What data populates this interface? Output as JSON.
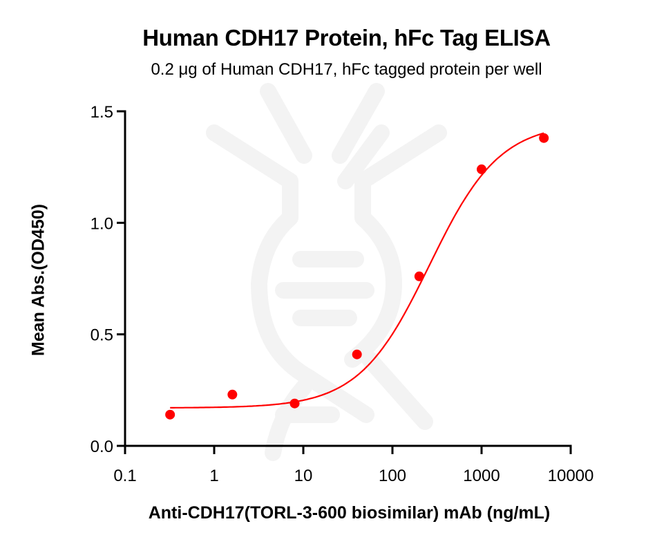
{
  "chart_data": {
    "type": "scatter",
    "title": "Human CDH17 Protein, hFc Tag ELISA",
    "subtitle": "0.2 μg of Human CDH17, hFc tagged protein per well",
    "xlabel": "Anti-CDH17(TORL-3-600 biosimilar) mAb (ng/mL)",
    "ylabel": "Mean Abs.(OD450)",
    "xscale": "log",
    "xlim": [
      0.1,
      10000
    ],
    "ylim": [
      0.0,
      1.5
    ],
    "xticks": [
      "0.1",
      "1",
      "10",
      "100",
      "1000",
      "10000"
    ],
    "yticks": [
      "0.0",
      "0.5",
      "1.0",
      "1.5"
    ],
    "grid": false,
    "legend": null,
    "series": [
      {
        "name": "Human CDH17, hFc",
        "color": "#ff0000",
        "x": [
          0.32,
          1.6,
          8,
          40,
          200,
          1000,
          5000
        ],
        "values": [
          0.14,
          0.23,
          0.19,
          0.41,
          0.76,
          1.24,
          1.38
        ],
        "fit": {
          "model": "4PL",
          "bottom": 0.17,
          "top": 1.45,
          "ec50": 260,
          "hill": 1.1
        }
      }
    ]
  },
  "watermark": {
    "icon": "dna-icon",
    "color": "#f2f2f2"
  }
}
